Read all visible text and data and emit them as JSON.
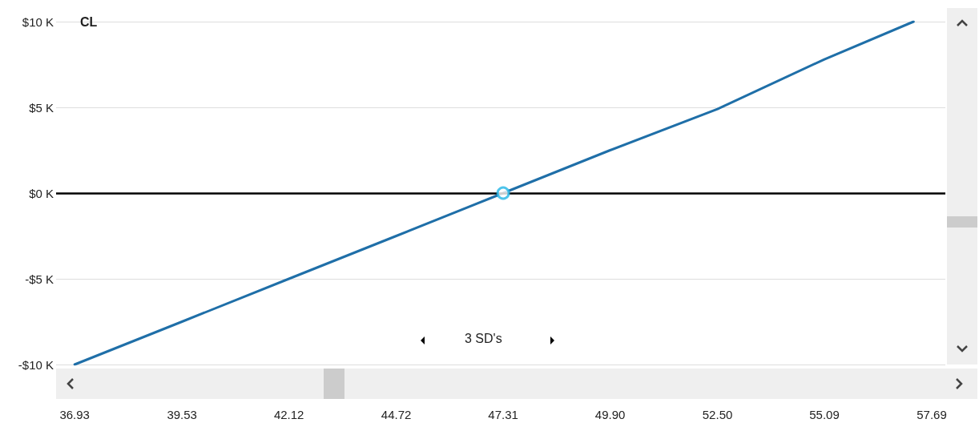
{
  "chart_data": {
    "type": "line",
    "title": "CL",
    "xlim": [
      36.48,
      58.02
    ],
    "ylim": [
      -10,
      10
    ],
    "xticks": [
      {
        "value": 36.93,
        "label": "36.93"
      },
      {
        "value": 39.53,
        "label": "39.53"
      },
      {
        "value": 42.12,
        "label": "42.12"
      },
      {
        "value": 44.72,
        "label": "44.72"
      },
      {
        "value": 47.31,
        "label": "47.31"
      },
      {
        "value": 49.9,
        "label": "49.90"
      },
      {
        "value": 52.5,
        "label": "52.50"
      },
      {
        "value": 55.09,
        "label": "55.09"
      },
      {
        "value": 57.69,
        "label": "57.69"
      }
    ],
    "yticks": [
      {
        "value": -10,
        "label": "-$10 K"
      },
      {
        "value": -5,
        "label": "-$5 K"
      },
      {
        "value": 0,
        "label": "$0 K"
      },
      {
        "value": 5,
        "label": "$5 K"
      },
      {
        "value": 10,
        "label": "$10 K"
      }
    ],
    "grid": "y",
    "marker": "none",
    "line_style": "solid",
    "series": [
      {
        "color": "#1f6fa8",
        "x": [
          36.93,
          39.53,
          42.12,
          44.72,
          47.31,
          49.9,
          52.5,
          55.09,
          57.25
        ],
        "values": [
          -10,
          -7.5,
          -5,
          -2.5,
          0,
          2.5,
          4.9,
          7.8,
          10
        ]
      },
      {
        "type": "scatter",
        "marker": "circle",
        "color": "#22b5e6",
        "x": [
          47.31
        ],
        "values": [
          0
        ]
      }
    ],
    "ref_lines": [
      {
        "axis": "y",
        "value": 0,
        "color": "#000000"
      }
    ],
    "annotations": [
      "3 SD's"
    ]
  }
}
